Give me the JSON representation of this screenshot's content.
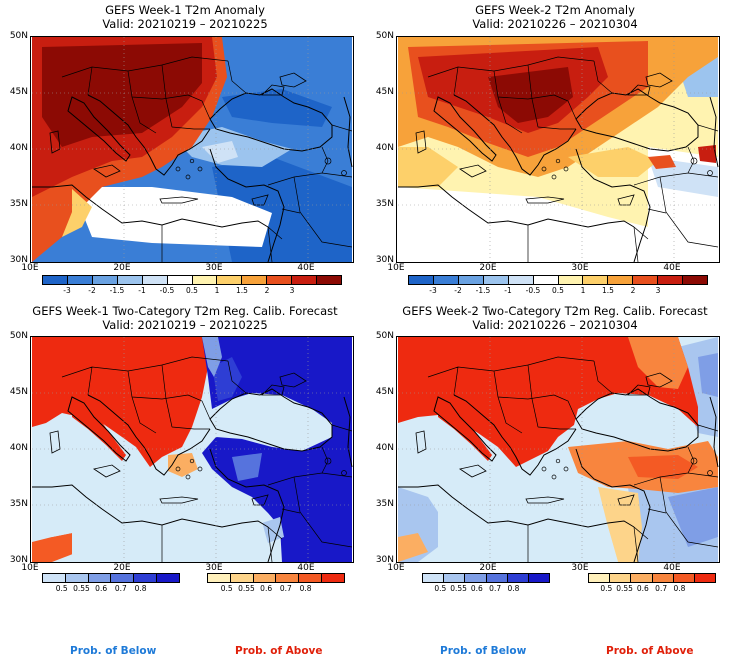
{
  "panels": [
    {
      "title": "GEFS Week-1 T2m Anomaly",
      "valid": "Valid: 20210219 – 20210225"
    },
    {
      "title": "GEFS Week-2 T2m Anomaly",
      "valid": "Valid: 20210226 – 20210304"
    },
    {
      "title": "GEFS Week-1 Two-Category T2m Reg. Calib. Forecast",
      "valid": "Valid: 20210219 – 20210225"
    },
    {
      "title": "GEFS Week-2 Two-Category T2m Reg. Calib. Forecast",
      "valid": "Valid: 20210226 – 20210304"
    }
  ],
  "axes": {
    "lat_labels": [
      "50N",
      "45N",
      "40N",
      "35N",
      "30N"
    ],
    "lon_labels": [
      "10E",
      "20E",
      "30E",
      "40E"
    ]
  },
  "anomaly_colorbar": {
    "labels": [
      "-3",
      "-2",
      "-1.5",
      "-1",
      "-0.5",
      "0.5",
      "1",
      "1.5",
      "2",
      "3"
    ],
    "colors": [
      "#1e64c8",
      "#3a7ed6",
      "#6aa2e2",
      "#9cc4ee",
      "#cfe2f6",
      "#ffffff",
      "#fff3b0",
      "#fdd06a",
      "#f7a23a",
      "#e8501e",
      "#c81e10",
      "#8c0a04"
    ]
  },
  "prob_colorbar": {
    "below_labels": [
      "0.5",
      "0.55",
      "0.6",
      "0.7",
      "0.8"
    ],
    "below_colors": [
      "#cfe3f7",
      "#a9c6ef",
      "#7f9ee6",
      "#5673dd",
      "#2e3ed4",
      "#1818c8"
    ],
    "above_labels": [
      "0.5",
      "0.55",
      "0.6",
      "0.7",
      "0.8"
    ],
    "above_colors": [
      "#fff0bb",
      "#fdd48a",
      "#fbae62",
      "#f8853e",
      "#f45a24",
      "#ee2a10"
    ],
    "below_caption": "Prob. of Below",
    "above_caption": "Prob. of Above",
    "below_caption_color": "#1e7ad8",
    "above_caption_color": "#e0200a"
  }
}
